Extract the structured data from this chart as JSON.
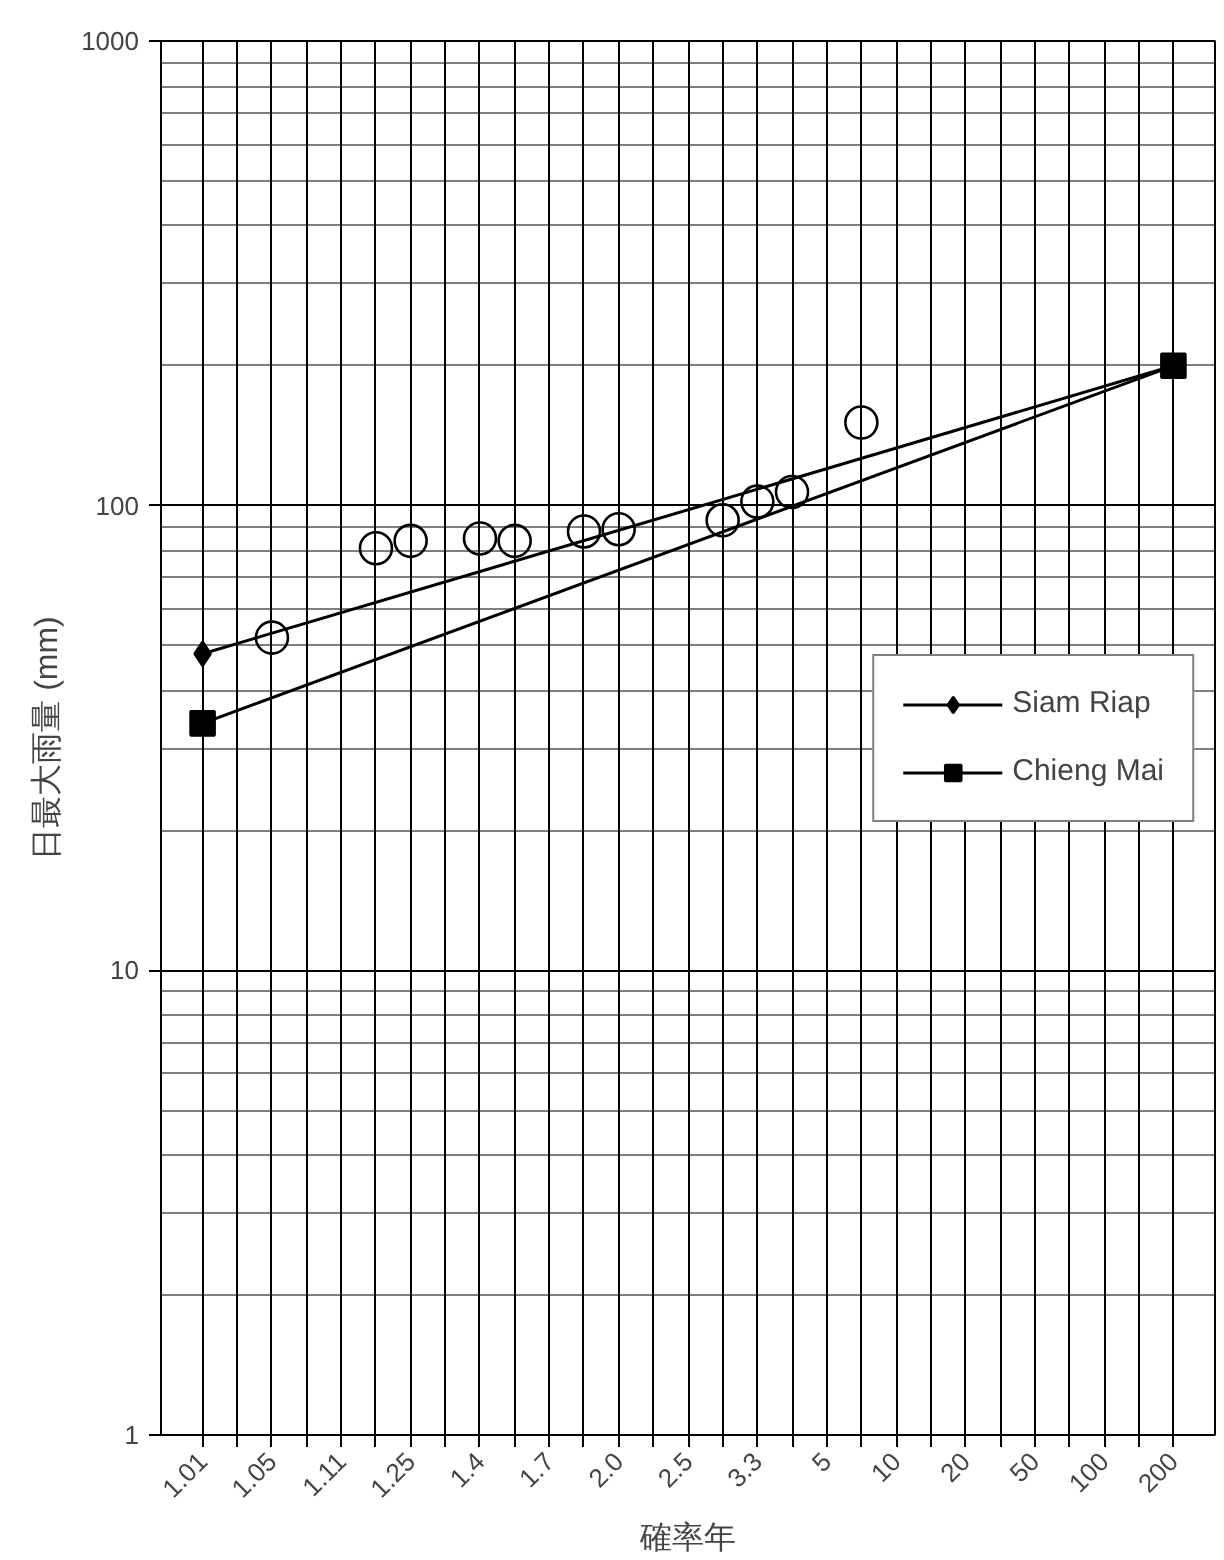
{
  "chart_data": {
    "type": "line",
    "xlabel": "確率年",
    "ylabel": "日最大雨量 (mm)",
    "categories": [
      "1.01",
      null,
      "1.05",
      null,
      "1.11",
      null,
      "1.25",
      null,
      "1.4",
      null,
      "1.7",
      null,
      "2.0",
      null,
      "2.5",
      null,
      "3.3",
      null,
      "5",
      null,
      "10",
      null,
      "20",
      null,
      "50",
      null,
      "100",
      null,
      "200"
    ],
    "ylim": [
      1,
      1000
    ],
    "yticks": [
      1,
      10,
      100,
      1000
    ],
    "log": "y",
    "grid": true,
    "legend": "right",
    "series": [
      {
        "name": "Siam Riap",
        "marker": "diamond",
        "color": "#000000",
        "values": [
          48,
          null,
          null,
          null,
          null,
          null,
          null,
          null,
          null,
          null,
          null,
          null,
          null,
          null,
          null,
          null,
          null,
          null,
          null,
          null,
          null,
          null,
          null,
          null,
          null,
          null,
          null,
          null,
          200
        ]
      },
      {
        "name": "Chieng Mai",
        "marker": "square",
        "color": "#000000",
        "values": [
          34,
          null,
          null,
          null,
          null,
          null,
          null,
          null,
          null,
          null,
          null,
          null,
          null,
          null,
          null,
          null,
          null,
          null,
          null,
          null,
          null,
          null,
          null,
          null,
          null,
          null,
          null,
          null,
          200
        ]
      },
      {
        "type": "scatter",
        "marker": "circle",
        "color": "#000000",
        "values": [
          null,
          null,
          52,
          null,
          null,
          81,
          84,
          null,
          85,
          84,
          null,
          88,
          89,
          null,
          null,
          93,
          102,
          107,
          null,
          151,
          null,
          null,
          null,
          null,
          null,
          null,
          null,
          null,
          null
        ]
      }
    ]
  }
}
